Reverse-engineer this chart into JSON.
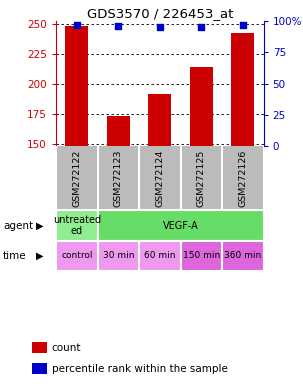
{
  "title": "GDS3570 / 226453_at",
  "samples": [
    "GSM272122",
    "GSM272123",
    "GSM272124",
    "GSM272125",
    "GSM272126"
  ],
  "counts": [
    248,
    173,
    191,
    214,
    242
  ],
  "percentile_ranks": [
    97,
    96,
    95,
    95,
    97
  ],
  "ylim_left": [
    148,
    252
  ],
  "ylim_right": [
    0,
    100
  ],
  "yticks_left": [
    150,
    175,
    200,
    225,
    250
  ],
  "yticks_right": [
    0,
    25,
    50,
    75,
    100
  ],
  "bar_color": "#cc0000",
  "dot_color": "#0000cc",
  "agent_row": [
    {
      "label": "untreated\ned",
      "color": "#90ee90",
      "span": [
        0,
        1
      ]
    },
    {
      "label": "VEGF-A",
      "color": "#66dd66",
      "span": [
        1,
        5
      ]
    }
  ],
  "time_row": [
    {
      "label": "control",
      "color": "#ee99ee",
      "span": [
        0,
        1
      ]
    },
    {
      "label": "30 min",
      "color": "#ee99ee",
      "span": [
        1,
        2
      ]
    },
    {
      "label": "60 min",
      "color": "#ee99ee",
      "span": [
        2,
        3
      ]
    },
    {
      "label": "150 min",
      "color": "#dd66dd",
      "span": [
        3,
        4
      ]
    },
    {
      "label": "360 min",
      "color": "#dd66dd",
      "span": [
        4,
        5
      ]
    }
  ],
  "grid_color": "#000000",
  "left_axis_color": "#cc0000",
  "right_axis_color": "#0000cc",
  "background_plot": "#ffffff",
  "background_sample": "#bbbbbb",
  "legend_count_color": "#cc0000",
  "legend_pct_color": "#0000cc",
  "sample_cell_border": "#ffffff",
  "agent_border": "#ffffff",
  "time_border": "#ffffff"
}
